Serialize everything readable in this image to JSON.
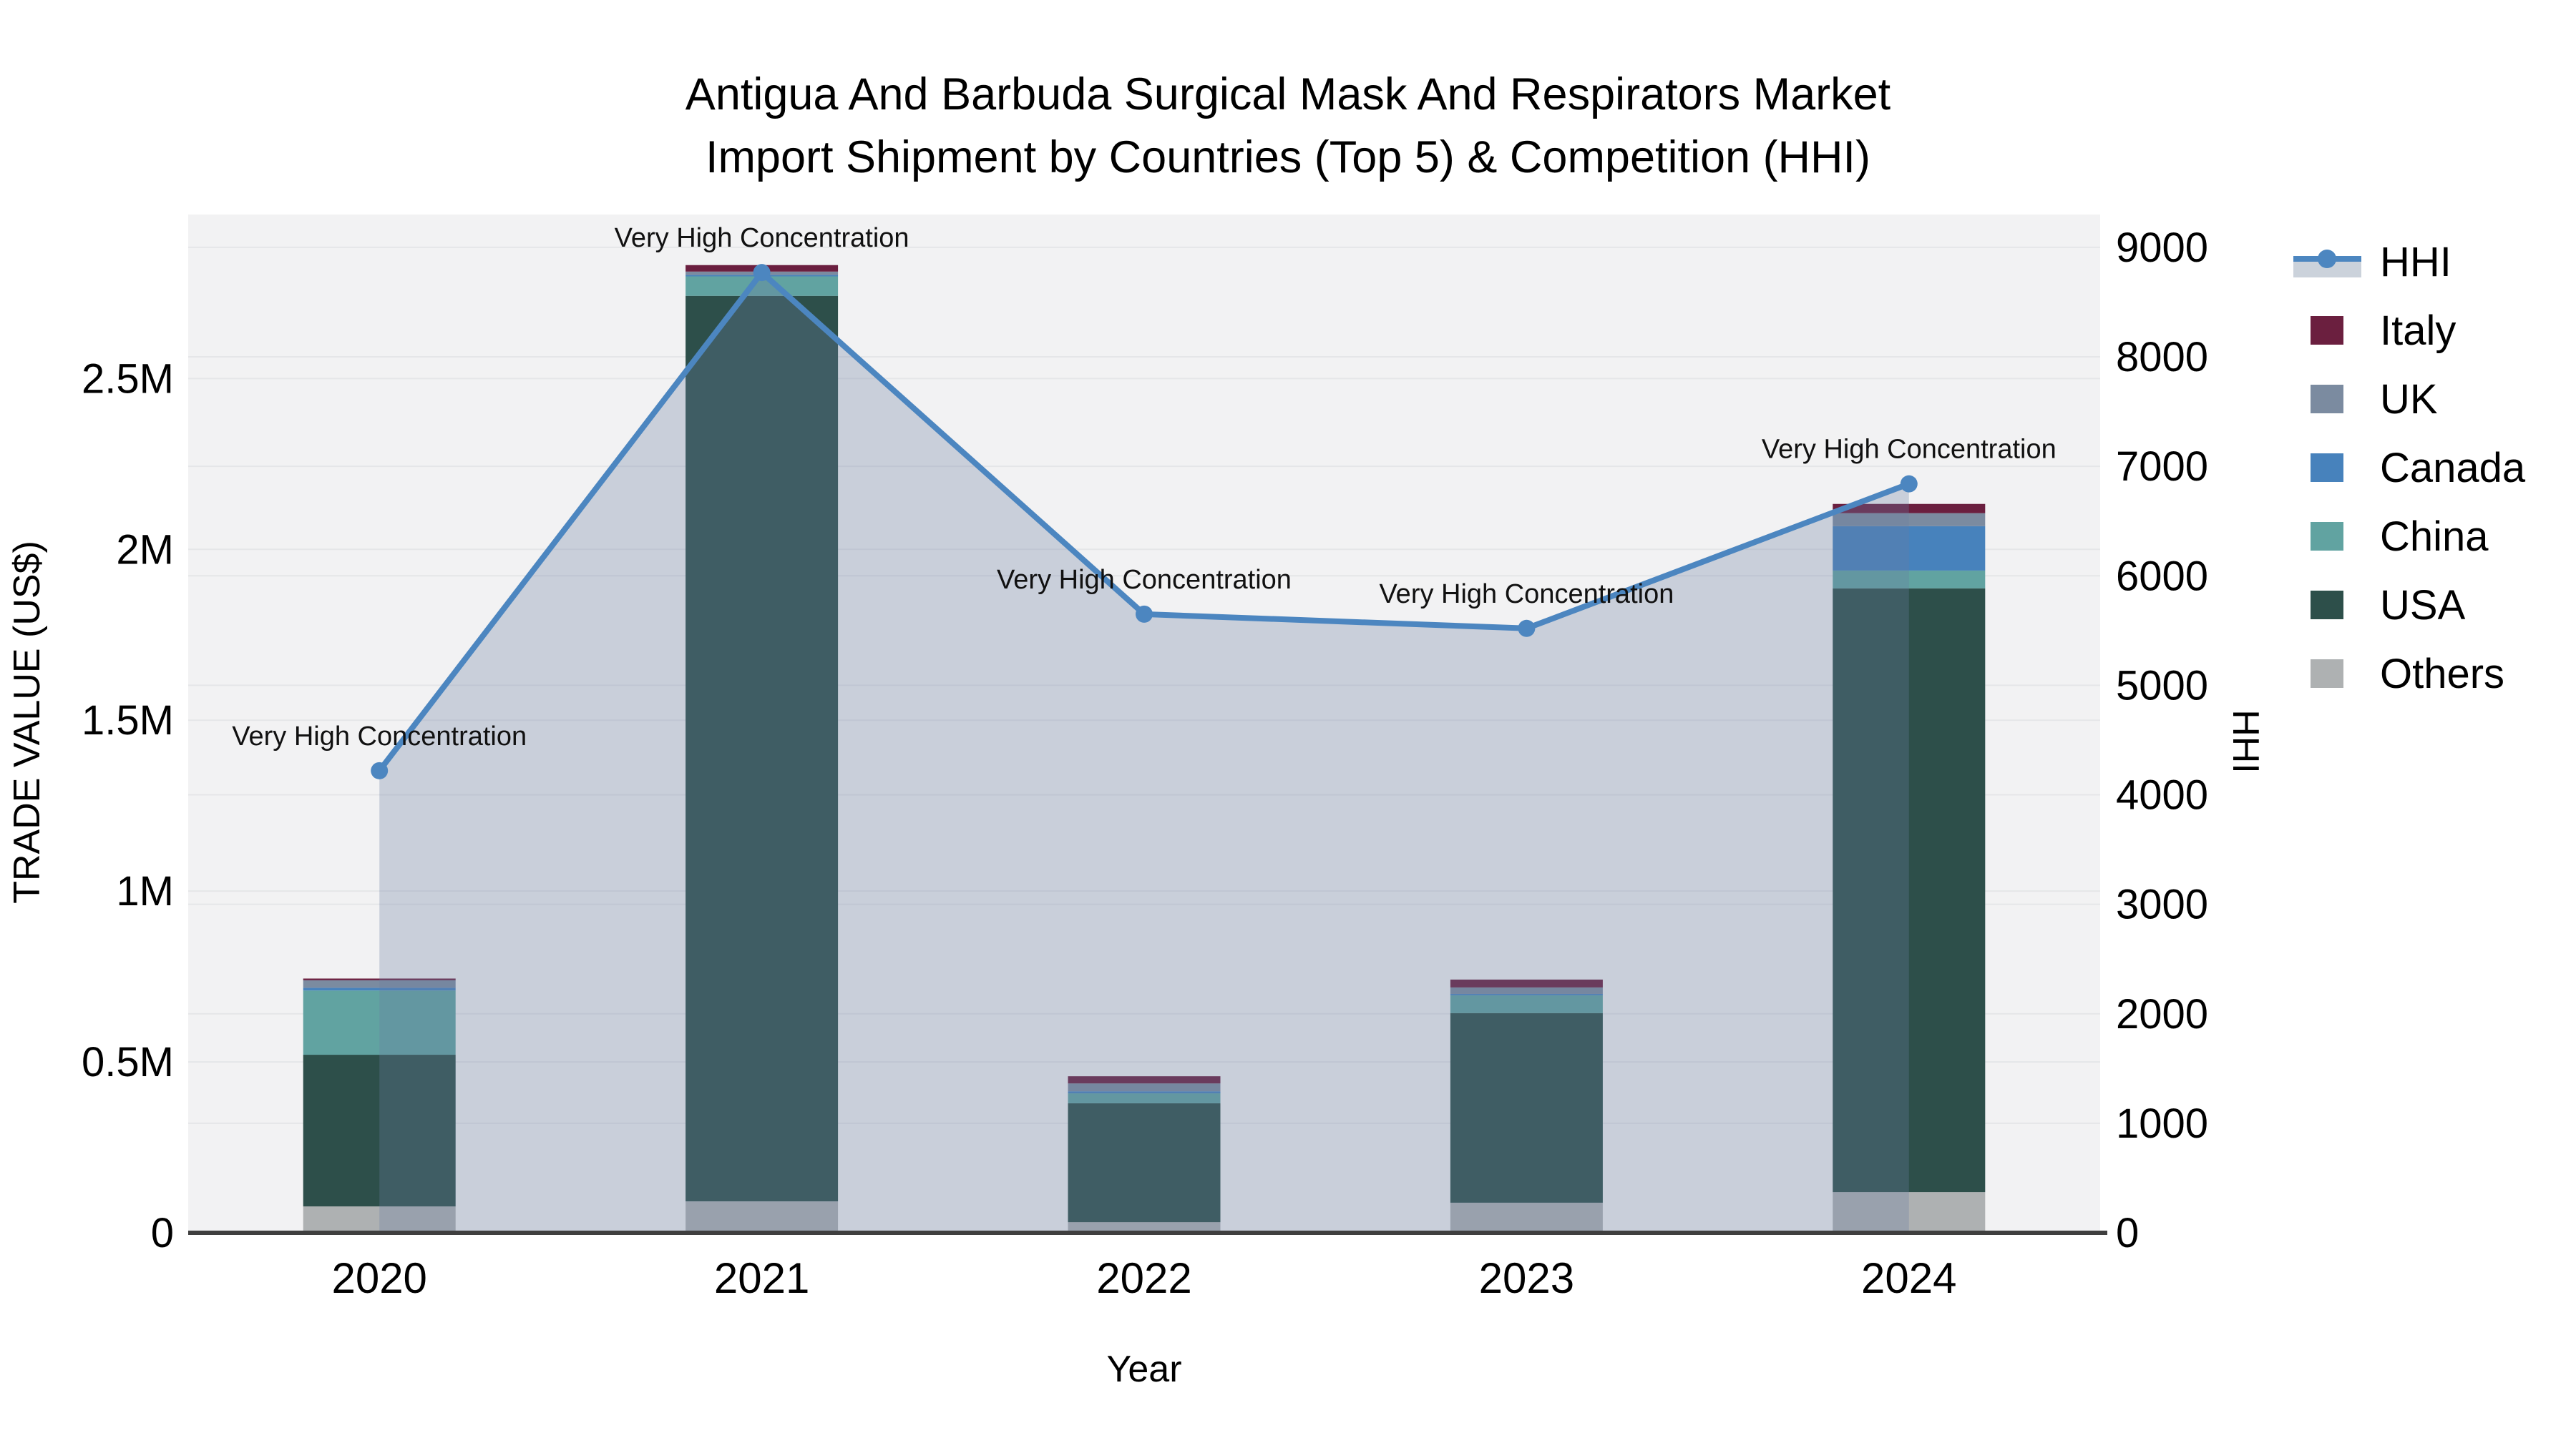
{
  "title": {
    "line1": "Antigua And Barbuda Surgical Mask And Respirators Market",
    "line2": "Import Shipment by Countries (Top 5) & Competition (HHI)"
  },
  "axes": {
    "x": {
      "title": "Year",
      "ticks": [
        "2020",
        "2021",
        "2022",
        "2023",
        "2024"
      ]
    },
    "y_left": {
      "title": "TRADE VALUE (US$)",
      "ticks": [
        {
          "label": "0",
          "value": 0
        },
        {
          "label": "0.5M",
          "value": 500000
        },
        {
          "label": "1M",
          "value": 1000000
        },
        {
          "label": "1.5M",
          "value": 1500000
        },
        {
          "label": "2M",
          "value": 2000000
        },
        {
          "label": "2.5M",
          "value": 2500000
        }
      ],
      "max": 2980000
    },
    "y_right": {
      "title": "HHI",
      "ticks": [
        {
          "label": "0",
          "value": 0
        },
        {
          "label": "1000",
          "value": 1000
        },
        {
          "label": "2000",
          "value": 2000
        },
        {
          "label": "3000",
          "value": 3000
        },
        {
          "label": "4000",
          "value": 4000
        },
        {
          "label": "5000",
          "value": 5000
        },
        {
          "label": "6000",
          "value": 6000
        },
        {
          "label": "7000",
          "value": 7000
        },
        {
          "label": "8000",
          "value": 8000
        },
        {
          "label": "9000",
          "value": 9000
        }
      ],
      "max": 9300
    }
  },
  "legend": {
    "items": [
      {
        "label": "HHI",
        "type": "line",
        "color": "#4C86C0",
        "band": "#CBD2DB"
      },
      {
        "label": "Italy",
        "type": "swatch",
        "color": "#6B1F3F"
      },
      {
        "label": "UK",
        "type": "swatch",
        "color": "#7B8BA0"
      },
      {
        "label": "Canada",
        "type": "swatch",
        "color": "#4782BC"
      },
      {
        "label": "China",
        "type": "swatch",
        "color": "#61A3A1"
      },
      {
        "label": "USA",
        "type": "swatch",
        "color": "#2D4F4A"
      },
      {
        "label": "Others",
        "type": "swatch",
        "color": "#AEB1B2"
      }
    ]
  },
  "chart_data": {
    "type": "combo",
    "bar_type": "stacked",
    "categories": [
      "2020",
      "2021",
      "2022",
      "2023",
      "2024"
    ],
    "bar_series": [
      {
        "name": "Others",
        "color": "#AEB1B2",
        "values": [
          77000,
          92000,
          31000,
          88000,
          119000
        ]
      },
      {
        "name": "USA",
        "color": "#2D4F4A",
        "values": [
          444000,
          2650000,
          348000,
          555000,
          1767000
        ]
      },
      {
        "name": "China",
        "color": "#61A3A1",
        "values": [
          188000,
          57000,
          29000,
          52000,
          52000
        ]
      },
      {
        "name": "Canada",
        "color": "#4782BC",
        "values": [
          8000,
          4000,
          6000,
          4000,
          130000
        ]
      },
      {
        "name": "UK",
        "color": "#7B8BA0",
        "values": [
          22000,
          10000,
          23000,
          19000,
          38000
        ]
      },
      {
        "name": "Italy",
        "color": "#6B1F3F",
        "values": [
          5000,
          19000,
          21000,
          23000,
          27000
        ]
      }
    ],
    "line_series": {
      "name": "HHI",
      "axis": "right",
      "color": "#4C86C0",
      "area_fill": "rgba(105,125,162,0.30)",
      "values": [
        4220,
        8770,
        5650,
        5520,
        6840
      ],
      "point_annotations": [
        "Very High Concentration",
        "Very High Concentration",
        "Very High Concentration",
        "Very High Concentration",
        "Very High Concentration"
      ]
    },
    "y_left_range": [
      0,
      2980000
    ],
    "y_right_range": [
      0,
      9300
    ],
    "grid": true,
    "legend_position": "right",
    "plot_bg": "#F2F2F3",
    "grid_color": "#E5E6E8",
    "axis_line_color": "#3F3F3F"
  }
}
